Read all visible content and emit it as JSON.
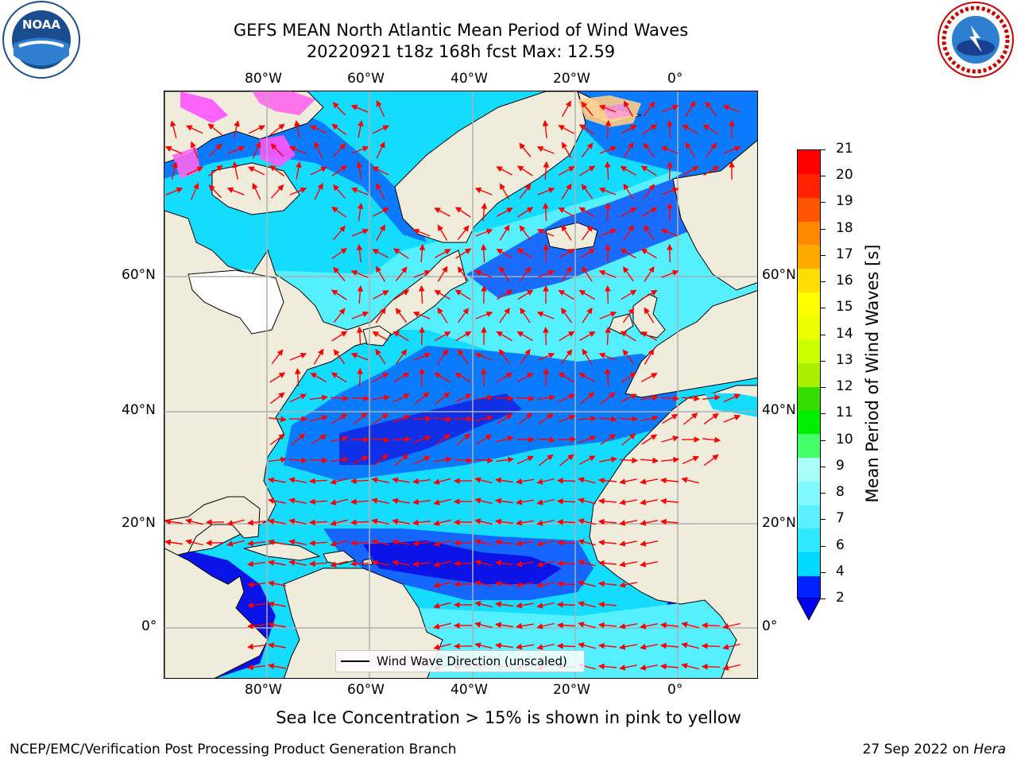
{
  "title": {
    "line1": "GEFS MEAN North Atlantic Mean Period of Wind Waves",
    "line2": "20220921 t18z 168h fcst   Max: 12.59"
  },
  "map": {
    "lon_labels": [
      "80°W",
      "60°W",
      "40°W",
      "20°W",
      "0°"
    ],
    "lat_labels": [
      "60°N",
      "40°N",
      "20°N",
      "0°"
    ],
    "legend_label": "Wind Wave Direction (unscaled)",
    "land_color": "#efecdc",
    "arrow_color": "#ff0000",
    "gridline_color": "#b0b0b0"
  },
  "colorbar": {
    "title": "Mean Period of Wind Waves [s]",
    "ticks": [
      "2",
      "4",
      "6",
      "7",
      "8",
      "9",
      "10",
      "11",
      "12",
      "13",
      "14",
      "15",
      "16",
      "17",
      "18",
      "19",
      "20",
      "21"
    ],
    "colors": [
      "#0022ff",
      "#00d8ff",
      "#2ee8ff",
      "#5cf0ff",
      "#80f8ff",
      "#a8fff8",
      "#44ff6a",
      "#00ee00",
      "#33dd00",
      "#aaee00",
      "#ccff00",
      "#eeff00",
      "#ffff00",
      "#ffdd00",
      "#ffaa00",
      "#ff8800",
      "#ff5500",
      "#ff2200",
      "#ff0000"
    ],
    "extend_color": "#0000ee"
  },
  "subtitle": "Sea Ice Concentration > 15% is shown in pink to yellow",
  "footer": {
    "left": "NCEP/EMC/Verification Post Processing Product Generation Branch",
    "right_prefix": "27 Sep 2022 on ",
    "right_host": "Hera"
  },
  "logos": {
    "left_text": "NOAA",
    "right_text": "NATIONAL WEATHER SERVICE"
  }
}
